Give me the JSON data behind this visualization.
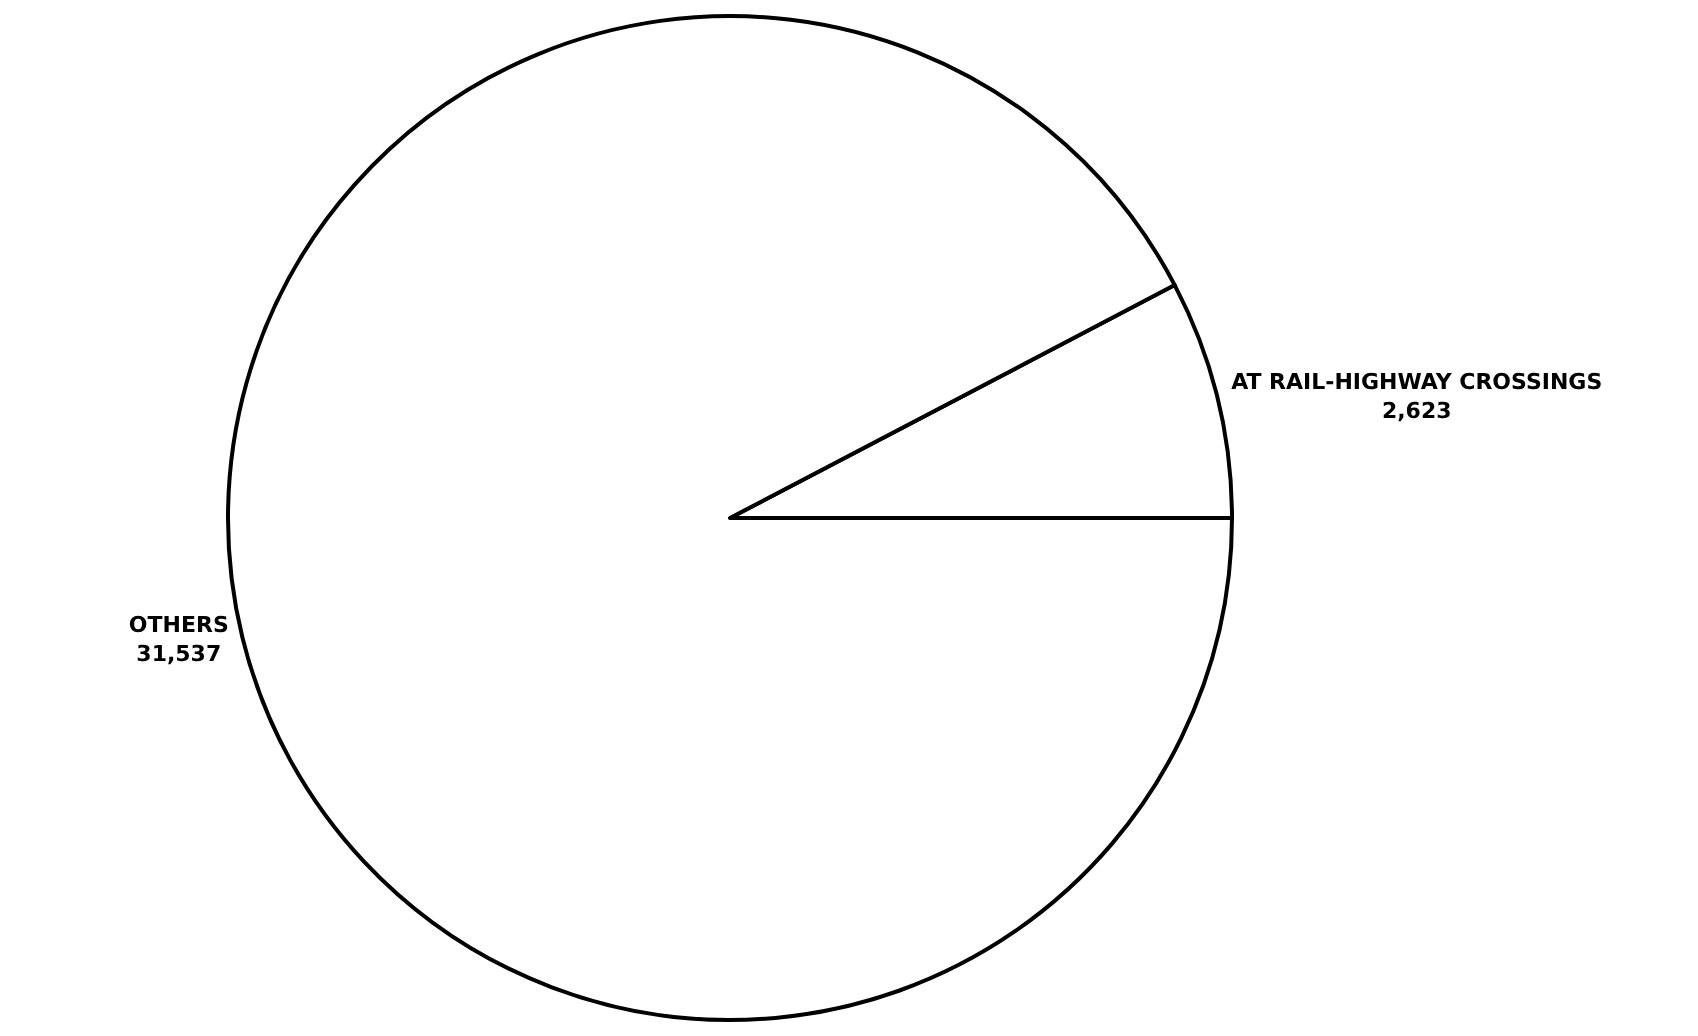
{
  "chart_data": {
    "type": "pie",
    "categories": [
      "AT RAIL-HIGHWAY CROSSINGS",
      "OTHERS"
    ],
    "values": [
      2623,
      31537
    ],
    "value_labels": [
      "2,623",
      "31,537"
    ],
    "colors": [
      "#ffffff",
      "#ffffff"
    ],
    "legend": false
  }
}
